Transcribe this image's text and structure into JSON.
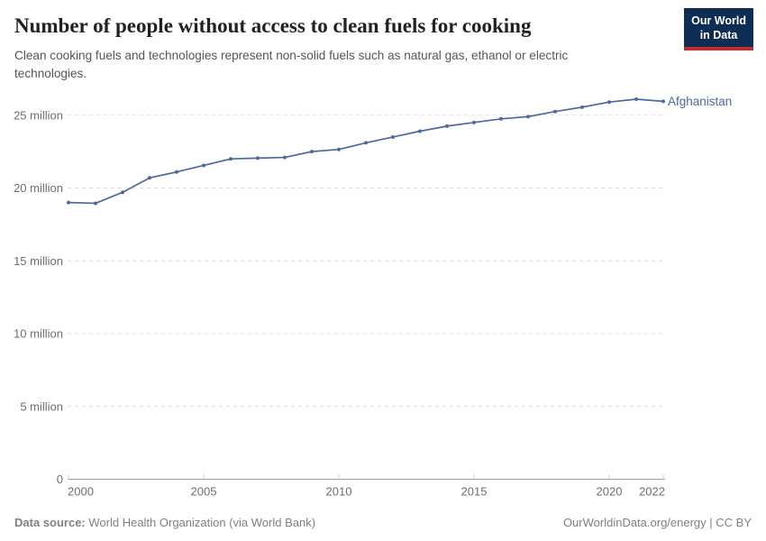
{
  "header": {
    "title": "Number of people without access to clean fuels for cooking",
    "subtitle": "Clean cooking fuels and technologies represent non-solid fuels such as natural gas, ethanol or electric technologies.",
    "logo": {
      "line1": "Our World",
      "line2": "in Data"
    }
  },
  "chart_data": {
    "type": "line",
    "title": "Number of people without access to clean fuels for cooking",
    "entity_label": "Afghanistan",
    "x": [
      2000,
      2001,
      2002,
      2003,
      2004,
      2005,
      2006,
      2007,
      2008,
      2009,
      2010,
      2011,
      2012,
      2013,
      2014,
      2015,
      2016,
      2017,
      2018,
      2019,
      2020,
      2021,
      2022
    ],
    "values": [
      19.0,
      18.95,
      19.7,
      20.7,
      21.1,
      21.55,
      22.0,
      22.05,
      22.1,
      22.5,
      22.65,
      23.1,
      23.5,
      23.9,
      24.25,
      24.5,
      24.75,
      24.9,
      25.25,
      25.55,
      25.9,
      26.1,
      25.95
    ],
    "values_unit": "million people",
    "series": [
      {
        "name": "Afghanistan",
        "values": [
          19.0,
          18.95,
          19.7,
          20.7,
          21.1,
          21.55,
          22.0,
          22.05,
          22.1,
          22.5,
          22.65,
          23.1,
          23.5,
          23.9,
          24.25,
          24.5,
          24.75,
          24.9,
          25.25,
          25.55,
          25.9,
          26.1,
          25.95
        ]
      }
    ],
    "xticks": [
      2000,
      2005,
      2010,
      2015,
      2020,
      2022
    ],
    "yticks": [
      {
        "value": 0,
        "label": "0"
      },
      {
        "value": 5,
        "label": "5 million"
      },
      {
        "value": 10,
        "label": "10 million"
      },
      {
        "value": 15,
        "label": "15 million"
      },
      {
        "value": 20,
        "label": "20 million"
      },
      {
        "value": 25,
        "label": "25 million"
      }
    ],
    "xlabel": "",
    "ylabel": "",
    "ylim": [
      0,
      27
    ],
    "grid": "horizontal-dashed",
    "legend": "end-of-line-label"
  },
  "footer": {
    "source_label": "Data source:",
    "source_value": "World Health Organization (via World Bank)",
    "credit": "OurWorldinData.org/energy | CC BY"
  },
  "colors": {
    "line": "#4C6A9C",
    "grid": "#dcdcdc",
    "axis": "#a1a1a1",
    "tick": "#cccccc",
    "muted_text": "#6e6e6e",
    "logo_navy": "#0e2d52",
    "logo_red": "#c12c35"
  }
}
